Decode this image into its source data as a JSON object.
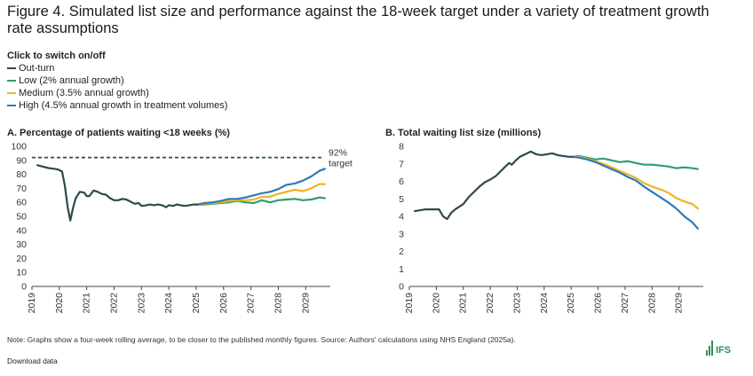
{
  "figure": {
    "title": "Figure 4. Simulated list size and performance against the 18-week target under a variety of treatment growth rate assumptions"
  },
  "legend": {
    "header": "Click to switch on/off",
    "items": [
      {
        "label": "Out-turn",
        "color": "#2e4a4a"
      },
      {
        "label": "Low (2% annual growth)",
        "color": "#2f9d6e"
      },
      {
        "label": "Medium (3.5% annual growth)",
        "color": "#f0b323"
      },
      {
        "label": "High (4.5% annual growth in treatment volumes)",
        "color": "#2b7bb9"
      }
    ]
  },
  "chart_data": [
    {
      "type": "line",
      "title": "A. Percentage of patients waiting <18 weeks (%)",
      "ylim": [
        0,
        100
      ],
      "yticks": [
        "0",
        "10",
        "20",
        "30",
        "40",
        "50",
        "60",
        "70",
        "80",
        "90",
        "100"
      ],
      "xlim": [
        2019,
        2029.9
      ],
      "xticks": [
        "2019",
        "2020",
        "2021",
        "2022",
        "2023",
        "2024",
        "2025",
        "2026",
        "2027",
        "2028",
        "2029"
      ],
      "target": {
        "value": 92,
        "label_value": "92%",
        "label_text": "target"
      },
      "series": [
        {
          "name": "Out-turn",
          "color": "#2e4a4a",
          "x": [
            2019.2,
            2019.4,
            2019.6,
            2019.8,
            2019.95,
            2020.1,
            2020.2,
            2020.3,
            2020.4,
            2020.5,
            2020.6,
            2020.75,
            2020.9,
            2021.0,
            2021.1,
            2021.25,
            2021.4,
            2021.55,
            2021.7,
            2021.85,
            2022.0,
            2022.15,
            2022.3,
            2022.45,
            2022.6,
            2022.75,
            2022.9,
            2023.0,
            2023.15,
            2023.3,
            2023.45,
            2023.6,
            2023.75,
            2023.9,
            2024.0,
            2024.15,
            2024.3,
            2024.45,
            2024.6,
            2024.75,
            2024.9,
            2025.05
          ],
          "values": [
            86.5,
            85.5,
            84.5,
            84,
            83.5,
            82,
            72,
            57,
            47,
            56,
            63,
            67.5,
            67,
            64.5,
            64.5,
            68.5,
            67.5,
            66,
            65.5,
            63,
            61.5,
            61.5,
            62.5,
            62,
            60.5,
            59,
            59.5,
            57.5,
            57.8,
            58.5,
            58,
            58.5,
            58,
            56.5,
            58,
            57.5,
            58.5,
            57.8,
            57.5,
            58,
            58.5,
            58.5
          ]
        },
        {
          "name": "Low (2% annual growth)",
          "color": "#2f9d6e",
          "x": [
            2025.05,
            2025.3,
            2025.6,
            2025.9,
            2026.2,
            2026.5,
            2026.8,
            2027.1,
            2027.4,
            2027.7,
            2028.0,
            2028.3,
            2028.6,
            2028.9,
            2029.2,
            2029.5,
            2029.7
          ],
          "values": [
            58.5,
            58.5,
            59,
            59.5,
            60,
            61,
            60,
            59.5,
            61.5,
            60,
            61.5,
            62,
            62.5,
            61.5,
            62,
            63.5,
            63
          ]
        },
        {
          "name": "Medium (3.5% annual growth)",
          "color": "#f0b323",
          "x": [
            2025.05,
            2025.3,
            2025.6,
            2025.9,
            2026.2,
            2026.5,
            2026.8,
            2027.1,
            2027.4,
            2027.7,
            2028.0,
            2028.3,
            2028.6,
            2028.9,
            2029.2,
            2029.5,
            2029.7
          ],
          "values": [
            58.5,
            59,
            59.5,
            60,
            61,
            61.5,
            61.5,
            62,
            64,
            64,
            66,
            67.5,
            69,
            68,
            70,
            73,
            73
          ]
        },
        {
          "name": "High (4.5% annual growth in treatment volumes)",
          "color": "#2b7bb9",
          "x": [
            2025.05,
            2025.3,
            2025.6,
            2025.9,
            2026.2,
            2026.5,
            2026.8,
            2027.1,
            2027.4,
            2027.7,
            2028.0,
            2028.3,
            2028.6,
            2028.9,
            2029.2,
            2029.5,
            2029.7
          ],
          "values": [
            58.5,
            59.5,
            60,
            61,
            62.5,
            62.5,
            63.5,
            65,
            66.5,
            67.5,
            69.5,
            72.5,
            73.5,
            75.5,
            78.5,
            82.5,
            84
          ]
        }
      ]
    },
    {
      "type": "line",
      "title": "B. Total waiting list size (millions)",
      "ylim": [
        0,
        8
      ],
      "yticks": [
        "0",
        "1",
        "2",
        "3",
        "4",
        "5",
        "6",
        "7",
        "8"
      ],
      "xlim": [
        2019,
        2029.9
      ],
      "xticks": [
        "2019",
        "2020",
        "2021",
        "2022",
        "2023",
        "2024",
        "2025",
        "2026",
        "2027",
        "2028",
        "2029"
      ],
      "series": [
        {
          "name": "Out-turn",
          "color": "#2e4a4a",
          "x": [
            2019.2,
            2019.4,
            2019.6,
            2019.8,
            2019.95,
            2020.1,
            2020.25,
            2020.4,
            2020.55,
            2020.7,
            2020.85,
            2021.0,
            2021.2,
            2021.4,
            2021.6,
            2021.8,
            2022.0,
            2022.2,
            2022.4,
            2022.6,
            2022.7,
            2022.8,
            2022.95,
            2023.1,
            2023.3,
            2023.5,
            2023.7,
            2023.9,
            2024.1,
            2024.3,
            2024.5,
            2024.7,
            2024.9,
            2025.05
          ],
          "values": [
            4.3,
            4.35,
            4.4,
            4.4,
            4.4,
            4.4,
            4.0,
            3.85,
            4.2,
            4.4,
            4.55,
            4.7,
            5.1,
            5.4,
            5.7,
            5.95,
            6.1,
            6.3,
            6.6,
            6.9,
            7.05,
            6.95,
            7.2,
            7.4,
            7.55,
            7.7,
            7.55,
            7.5,
            7.55,
            7.6,
            7.5,
            7.45,
            7.4,
            7.4
          ]
        },
        {
          "name": "Low (2% annual growth)",
          "color": "#2f9d6e",
          "x": [
            2025.05,
            2025.3,
            2025.6,
            2025.9,
            2026.2,
            2026.5,
            2026.8,
            2027.1,
            2027.4,
            2027.7,
            2028.0,
            2028.3,
            2028.6,
            2028.9,
            2029.2,
            2029.5,
            2029.7
          ],
          "values": [
            7.4,
            7.45,
            7.35,
            7.25,
            7.3,
            7.2,
            7.1,
            7.15,
            7.05,
            6.95,
            6.95,
            6.9,
            6.85,
            6.75,
            6.8,
            6.75,
            6.7
          ]
        },
        {
          "name": "Medium (3.5% annual growth)",
          "color": "#f0b323",
          "x": [
            2025.05,
            2025.3,
            2025.6,
            2025.9,
            2026.2,
            2026.5,
            2026.8,
            2027.1,
            2027.4,
            2027.7,
            2028.0,
            2028.3,
            2028.6,
            2028.9,
            2029.2,
            2029.5,
            2029.7
          ],
          "values": [
            7.4,
            7.4,
            7.3,
            7.15,
            7.0,
            6.8,
            6.6,
            6.4,
            6.2,
            5.9,
            5.7,
            5.55,
            5.35,
            5.05,
            4.85,
            4.7,
            4.45
          ]
        },
        {
          "name": "High (4.5% annual growth in treatment volumes)",
          "color": "#2b7bb9",
          "x": [
            2025.05,
            2025.3,
            2025.6,
            2025.9,
            2026.2,
            2026.5,
            2026.8,
            2027.1,
            2027.4,
            2027.7,
            2028.0,
            2028.3,
            2028.6,
            2028.9,
            2029.2,
            2029.5,
            2029.7
          ],
          "values": [
            7.4,
            7.35,
            7.25,
            7.1,
            6.9,
            6.7,
            6.5,
            6.25,
            6.05,
            5.7,
            5.4,
            5.1,
            4.8,
            4.45,
            4.0,
            3.65,
            3.3
          ]
        }
      ]
    }
  ],
  "footer": {
    "note": "Note: Graphs show a four-week rolling average, to be closer to the published monthly figures. Source: Authors' calculations using NHS England (2025a).",
    "download": "Download data",
    "logo_text": "IFS"
  }
}
